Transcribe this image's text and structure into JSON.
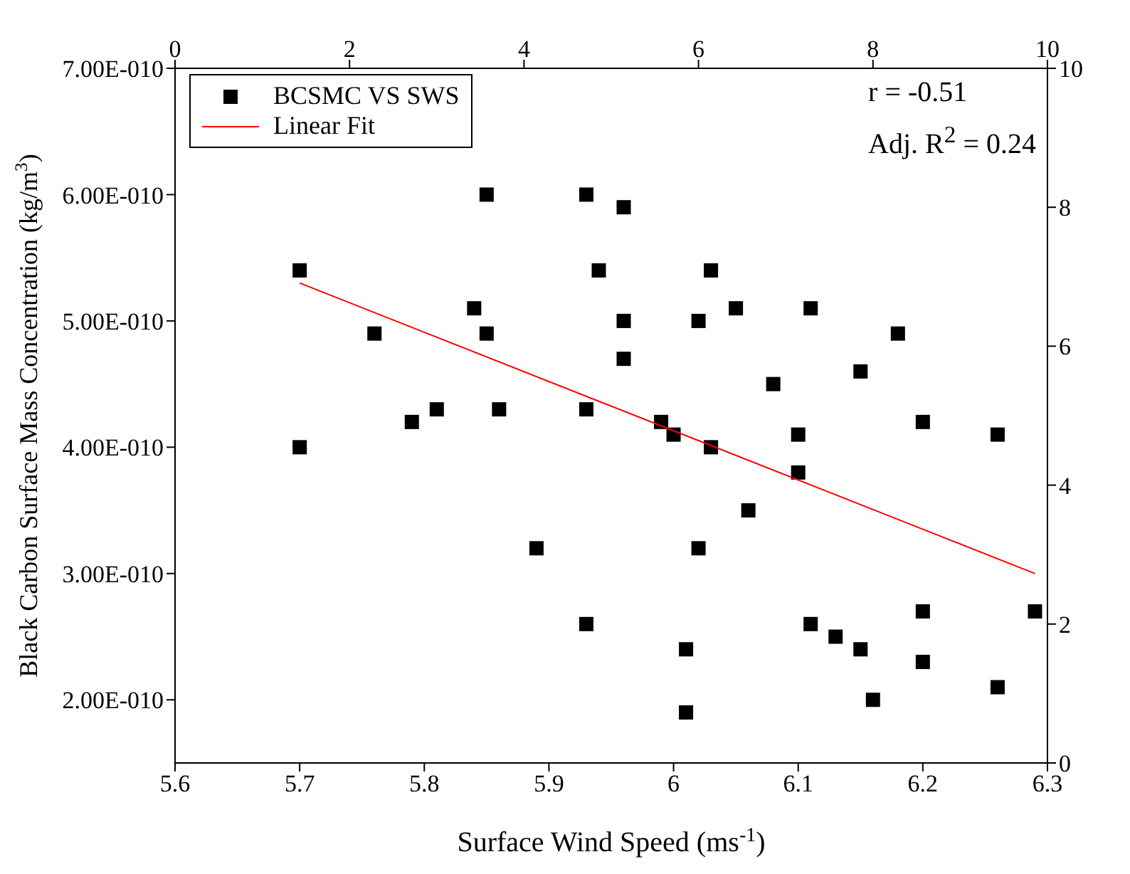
{
  "chart_data": {
    "type": "scatter",
    "xlabel": "Surface Wind Speed (ms$^{-1}$)",
    "ylabel": "Black Carbon Surface Mass Concentration (kg/m$^{3}$)",
    "annotations": [
      "r = -0.51",
      "Adj. R$^{2}$ = 0.24"
    ],
    "series": [
      {
        "name": "BCSMC VS SWS",
        "color": "#000000",
        "marker": "square",
        "x": [
          5.7,
          5.7,
          5.76,
          5.79,
          5.81,
          5.84,
          5.85,
          5.85,
          5.86,
          5.89,
          5.93,
          5.93,
          5.93,
          5.94,
          5.96,
          5.96,
          5.96,
          5.99,
          6.0,
          6.01,
          6.01,
          6.02,
          6.02,
          6.03,
          6.03,
          6.05,
          6.06,
          6.08,
          6.1,
          6.1,
          6.11,
          6.11,
          6.13,
          6.15,
          6.15,
          6.16,
          6.18,
          6.2,
          6.2,
          6.2,
          6.26,
          6.26,
          6.29
        ],
        "values": [
          5.4e-10,
          4e-10,
          4.9e-10,
          4.2e-10,
          4.3e-10,
          5.1e-10,
          4.9e-10,
          6e-10,
          4.3e-10,
          3.2e-10,
          2.6e-10,
          4.3e-10,
          6e-10,
          5.4e-10,
          4.7e-10,
          5.9e-10,
          5e-10,
          4.2e-10,
          4.1e-10,
          2.4e-10,
          1.9e-10,
          3.2e-10,
          5e-10,
          4e-10,
          5.4e-10,
          5.1e-10,
          3.5e-10,
          4.5e-10,
          4.1e-10,
          3.8e-10,
          2.6e-10,
          5.1e-10,
          2.5e-10,
          4.6e-10,
          2.4e-10,
          2e-10,
          4.9e-10,
          4.2e-10,
          2.7e-10,
          2.3e-10,
          4.1e-10,
          2.1e-10,
          2.7e-10
        ]
      },
      {
        "name": "Linear Fit",
        "type": "line",
        "color": "#ff0000",
        "marker": "none",
        "x": [
          5.7,
          6.29
        ],
        "values": [
          5.3e-10,
          3e-10
        ]
      }
    ],
    "xlim": [
      5.6,
      6.3
    ],
    "xticks": [
      5.6,
      5.7,
      5.8,
      5.9,
      6.0,
      6.1,
      6.2,
      6.3
    ],
    "ylim": [
      1.5e-10,
      7e-10
    ],
    "yticks": [
      {
        "value": 2e-10,
        "label": "2.00E-010"
      },
      {
        "value": 3e-10,
        "label": "3.00E-010"
      },
      {
        "value": 4e-10,
        "label": "4.00E-010"
      },
      {
        "value": 5e-10,
        "label": "5.00E-010"
      },
      {
        "value": 6e-10,
        "label": "6.00E-010"
      },
      {
        "value": 7e-10,
        "label": "7.00E-010"
      }
    ],
    "x2lim": [
      0,
      10
    ],
    "x2ticks": [
      0,
      2,
      4,
      6,
      8,
      10
    ],
    "y2lim": [
      0,
      10
    ],
    "y2ticks": [
      0,
      2,
      4,
      6,
      8,
      10
    ],
    "legend": "top left"
  }
}
